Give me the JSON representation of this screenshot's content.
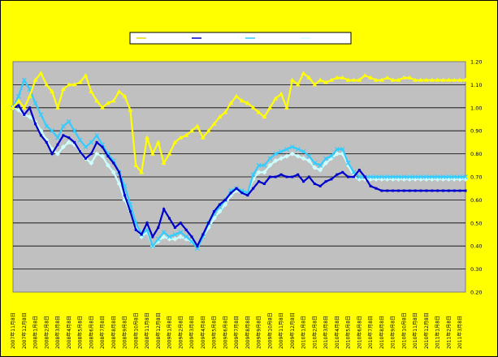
{
  "chart_data": {
    "type": "line",
    "title": "",
    "ylim": [
      0.2,
      1.2
    ],
    "yticks": [
      "0.20",
      "0.30",
      "0.40",
      "0.50",
      "0.60",
      "0.70",
      "0.80",
      "0.90",
      "1.00",
      "1.10",
      "1.20"
    ],
    "grid": true,
    "legend_position": "top",
    "x_labels": [
      "2007年11月8日",
      "2007年12月8日",
      "2008年1月8日",
      "2008年2月8日",
      "2008年3月8日",
      "2008年4月8日",
      "2008年5月8日",
      "2008年6月8日",
      "2008年7月8日",
      "2008年8月8日",
      "2008年9月8日",
      "2008年10月8日",
      "2008年11月8日",
      "2008年12月8日",
      "2009年1月8日",
      "2009年2月8日",
      "2009年3月8日",
      "2009年4月8日",
      "2009年5月8日",
      "2009年6月8日",
      "2009年7月8日",
      "2009年8月8日",
      "2009年9月8日",
      "2009年10月8日",
      "2009年11月8日",
      "2009年12月8日",
      "2010年1月8日",
      "2010年2月8日",
      "2010年3月8日",
      "2010年4月8日",
      "2010年5月8日",
      "2010年6月8日",
      "2010年7月8日",
      "2010年8月8日",
      "2010年9月8日",
      "2010年10月8日",
      "2010年11月8日",
      "2010年12月8日",
      "2011年1月8日",
      "2011年2月8日",
      "2011年3月8日"
    ],
    "series": [
      {
        "name": "",
        "color": "#ffff00",
        "marker": "triangle",
        "x": [
          0,
          0.5,
          1,
          1.5,
          2,
          2.5,
          3,
          3.5,
          4,
          4.5,
          5,
          5.5,
          6,
          6.5,
          7,
          7.5,
          8,
          8.5,
          9,
          9.5,
          10,
          10.5,
          11,
          11.5,
          12,
          12.5,
          13,
          13.5,
          14,
          14.5,
          15,
          15.5,
          16,
          16.5,
          17,
          17.5,
          18,
          18.5,
          19,
          19.5,
          20,
          20.5,
          21,
          21.5,
          22,
          22.5,
          23,
          23.5,
          24,
          24.5,
          25,
          25.5,
          26,
          26.5,
          27,
          27.5,
          28,
          28.5,
          29,
          29.5,
          30,
          30.5,
          31,
          31.5,
          32,
          32.5,
          33,
          33.5,
          34,
          34.5,
          35,
          35.5,
          36,
          36.5,
          37,
          37.5,
          38,
          38.5,
          39,
          39.5,
          40,
          40.5
        ],
        "values": [
          1.0,
          1.03,
          1.0,
          1.05,
          1.12,
          1.15,
          1.1,
          1.07,
          1.0,
          1.08,
          1.1,
          1.1,
          1.11,
          1.14,
          1.07,
          1.03,
          1.0,
          1.02,
          1.03,
          1.07,
          1.05,
          0.99,
          0.75,
          0.72,
          0.87,
          0.8,
          0.85,
          0.76,
          0.8,
          0.85,
          0.87,
          0.88,
          0.9,
          0.92,
          0.87,
          0.9,
          0.93,
          0.96,
          0.98,
          1.02,
          1.05,
          1.03,
          1.02,
          1.0,
          0.98,
          0.96,
          1.0,
          1.04,
          1.06,
          1.0,
          1.12,
          1.1,
          1.15,
          1.13,
          1.1,
          1.12,
          1.11,
          1.12,
          1.13,
          1.13,
          1.12,
          1.12,
          1.12,
          1.14,
          1.13,
          1.12,
          1.12,
          1.13,
          1.12,
          1.12,
          1.13,
          1.13,
          1.12,
          1.12,
          1.12,
          1.12,
          1.12,
          1.12,
          1.12,
          1.12,
          1.12,
          1.12
        ]
      },
      {
        "name": "",
        "color": "#0000cc",
        "marker": "square",
        "x": [
          0,
          0.5,
          1,
          1.5,
          2,
          2.5,
          3,
          3.5,
          4,
          4.5,
          5,
          5.5,
          6,
          6.5,
          7,
          7.5,
          8,
          8.5,
          9,
          9.5,
          10,
          10.5,
          11,
          11.5,
          12,
          12.5,
          13,
          13.5,
          14,
          14.5,
          15,
          15.5,
          16,
          16.5,
          17,
          17.5,
          18,
          18.5,
          19,
          19.5,
          20,
          20.5,
          21,
          21.5,
          22,
          22.5,
          23,
          23.5,
          24,
          24.5,
          25,
          25.5,
          26,
          26.5,
          27,
          27.5,
          28,
          28.5,
          29,
          29.5,
          30,
          30.5,
          31,
          31.5,
          32,
          32.5,
          33,
          33.5,
          34,
          34.5,
          35,
          35.5,
          36,
          36.5,
          37,
          37.5,
          38,
          38.5,
          39,
          39.5,
          40,
          40.5
        ],
        "values": [
          1.0,
          1.01,
          0.97,
          1.0,
          0.93,
          0.88,
          0.85,
          0.8,
          0.84,
          0.88,
          0.87,
          0.85,
          0.81,
          0.78,
          0.8,
          0.85,
          0.83,
          0.79,
          0.76,
          0.72,
          0.62,
          0.55,
          0.47,
          0.45,
          0.5,
          0.44,
          0.48,
          0.56,
          0.52,
          0.48,
          0.5,
          0.47,
          0.44,
          0.4,
          0.45,
          0.5,
          0.55,
          0.58,
          0.6,
          0.63,
          0.65,
          0.63,
          0.62,
          0.65,
          0.68,
          0.67,
          0.7,
          0.7,
          0.71,
          0.7,
          0.7,
          0.71,
          0.68,
          0.7,
          0.67,
          0.66,
          0.68,
          0.69,
          0.71,
          0.72,
          0.7,
          0.7,
          0.73,
          0.7,
          0.66,
          0.65,
          0.64,
          0.64,
          0.64,
          0.64,
          0.64,
          0.64,
          0.64,
          0.64,
          0.64,
          0.64,
          0.64,
          0.64,
          0.64,
          0.64,
          0.64,
          0.64
        ]
      },
      {
        "name": "",
        "color": "#33ccff",
        "marker": "x",
        "x": [
          0,
          0.5,
          1,
          1.5,
          2,
          2.5,
          3,
          3.5,
          4,
          4.5,
          5,
          5.5,
          6,
          6.5,
          7,
          7.5,
          8,
          8.5,
          9,
          9.5,
          10,
          10.5,
          11,
          11.5,
          12,
          12.5,
          13,
          13.5,
          14,
          14.5,
          15,
          15.5,
          16,
          16.5,
          17,
          17.5,
          18,
          18.5,
          19,
          19.5,
          20,
          20.5,
          21,
          21.5,
          22,
          22.5,
          23,
          23.5,
          24,
          24.5,
          25,
          25.5,
          26,
          26.5,
          27,
          27.5,
          28,
          28.5,
          29,
          29.5,
          30,
          30.5,
          31,
          31.5,
          32,
          32.5,
          33,
          33.5,
          34,
          34.5,
          35,
          35.5,
          36,
          36.5,
          37,
          37.5,
          38,
          38.5,
          39,
          39.5,
          40,
          40.5
        ],
        "values": [
          1.0,
          1.05,
          1.12,
          1.08,
          1.02,
          0.97,
          0.92,
          0.9,
          0.87,
          0.92,
          0.94,
          0.9,
          0.86,
          0.83,
          0.85,
          0.88,
          0.84,
          0.8,
          0.77,
          0.72,
          0.66,
          0.58,
          0.5,
          0.45,
          0.47,
          0.4,
          0.43,
          0.46,
          0.44,
          0.45,
          0.46,
          0.44,
          0.42,
          0.39,
          0.44,
          0.5,
          0.54,
          0.57,
          0.6,
          0.64,
          0.65,
          0.64,
          0.63,
          0.71,
          0.75,
          0.75,
          0.78,
          0.8,
          0.81,
          0.82,
          0.83,
          0.82,
          0.81,
          0.79,
          0.76,
          0.75,
          0.78,
          0.79,
          0.82,
          0.82,
          0.76,
          0.72,
          0.7,
          0.7,
          0.7,
          0.7,
          0.7,
          0.7,
          0.7,
          0.7,
          0.7,
          0.7,
          0.7,
          0.7,
          0.7,
          0.7,
          0.7,
          0.7,
          0.7,
          0.7,
          0.7,
          0.7
        ]
      },
      {
        "name": "",
        "color": "#ccffff",
        "marker": "diamond",
        "x": [
          0,
          0.5,
          1,
          1.5,
          2,
          2.5,
          3,
          3.5,
          4,
          4.5,
          5,
          5.5,
          6,
          6.5,
          7,
          7.5,
          8,
          8.5,
          9,
          9.5,
          10,
          10.5,
          11,
          11.5,
          12,
          12.5,
          13,
          13.5,
          14,
          14.5,
          15,
          15.5,
          16,
          16.5,
          17,
          17.5,
          18,
          18.5,
          19,
          19.5,
          20,
          20.5,
          21,
          21.5,
          22,
          22.5,
          23,
          23.5,
          24,
          24.5,
          25,
          25.5,
          26,
          26.5,
          27,
          27.5,
          28,
          28.5,
          29,
          29.5,
          30,
          30.5,
          31,
          31.5,
          32,
          32.5,
          33,
          33.5,
          34,
          34.5,
          35,
          35.5,
          36,
          36.5,
          37,
          37.5,
          38,
          38.5,
          39,
          39.5,
          40,
          40.5
        ],
        "values": [
          1.0,
          0.99,
          0.97,
          0.96,
          0.94,
          0.9,
          0.86,
          0.82,
          0.8,
          0.83,
          0.85,
          0.84,
          0.81,
          0.78,
          0.76,
          0.8,
          0.79,
          0.75,
          0.72,
          0.67,
          0.6,
          0.55,
          0.48,
          0.44,
          0.46,
          0.4,
          0.42,
          0.44,
          0.43,
          0.43,
          0.44,
          0.43,
          0.42,
          0.4,
          0.44,
          0.48,
          0.52,
          0.55,
          0.58,
          0.62,
          0.64,
          0.63,
          0.63,
          0.69,
          0.72,
          0.72,
          0.75,
          0.77,
          0.78,
          0.79,
          0.8,
          0.79,
          0.78,
          0.77,
          0.74,
          0.73,
          0.76,
          0.78,
          0.8,
          0.8,
          0.75,
          0.7,
          0.69,
          0.69,
          0.69,
          0.69,
          0.69,
          0.69,
          0.69,
          0.69,
          0.69,
          0.69,
          0.69,
          0.69,
          0.69,
          0.69,
          0.69,
          0.69,
          0.69,
          0.69,
          0.69,
          0.69
        ]
      }
    ]
  }
}
